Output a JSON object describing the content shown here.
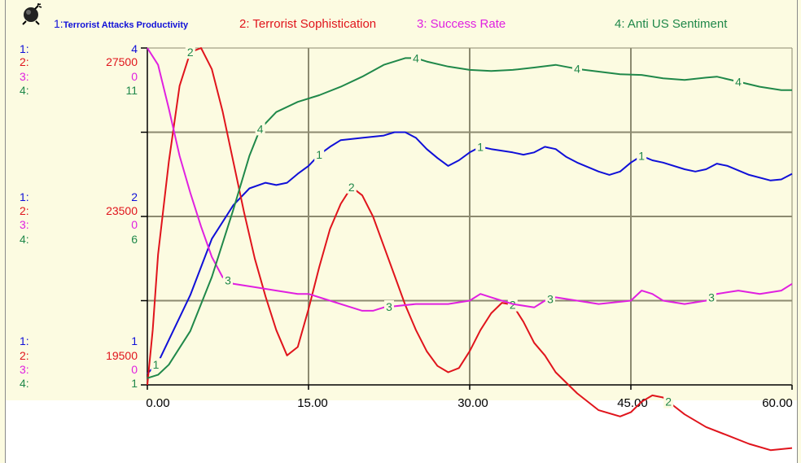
{
  "legend": {
    "s1_num": "1:",
    "s1_name": "Terrorist Attacks Productivity",
    "s2": "2: Terrorist Sophistication",
    "s3": "3: Success Rate",
    "s4": "4: Anti US Sentiment"
  },
  "axis_labels": {
    "top": {
      "n1": "1:",
      "n2": "2:",
      "n3": "3:",
      "n4": "4:",
      "v1": "4",
      "v2": "27500",
      "v3": "0",
      "v4": "11"
    },
    "mid": {
      "n1": "1:",
      "n2": "2:",
      "n3": "3:",
      "n4": "4:",
      "v1": "2",
      "v2": "23500",
      "v3": "0",
      "v4": "6"
    },
    "bot": {
      "n1": "1:",
      "n2": "2:",
      "n3": "3:",
      "n4": "4:",
      "v1": "1",
      "v2": "19500",
      "v3": "0",
      "v4": "1"
    }
  },
  "icons": {
    "bomb": "bomb-icon"
  },
  "colors": {
    "series1": "#1010d8",
    "series2": "#e0141c",
    "series3": "#e020e0",
    "series4": "#20884a",
    "background": "#fcfbe1",
    "grid": "#8c8a70"
  },
  "chart_data": {
    "type": "line",
    "xlim": [
      0,
      60
    ],
    "x_ticks": [
      "0.00",
      "15.00",
      "30.00",
      "45.00",
      "60.00"
    ],
    "grid": true,
    "legend_placement": "top",
    "series": [
      {
        "name": "Terrorist Attacks Productivity",
        "marker": "1",
        "y_axis": [
          1,
          4
        ],
        "points": [
          [
            0,
            1.1
          ],
          [
            1,
            1.2
          ],
          [
            2,
            1.4
          ],
          [
            4,
            1.8
          ],
          [
            6,
            2.3
          ],
          [
            8,
            2.6
          ],
          [
            9.5,
            2.75
          ],
          [
            11,
            2.8
          ],
          [
            12,
            2.78
          ],
          [
            13,
            2.8
          ],
          [
            14,
            2.88
          ],
          [
            15,
            2.95
          ],
          [
            16,
            3.05
          ],
          [
            17,
            3.12
          ],
          [
            18,
            3.18
          ],
          [
            20,
            3.2
          ],
          [
            22,
            3.22
          ],
          [
            23,
            3.25
          ],
          [
            24,
            3.25
          ],
          [
            25,
            3.2
          ],
          [
            26,
            3.1
          ],
          [
            27,
            3.02
          ],
          [
            28,
            2.95
          ],
          [
            29,
            3.0
          ],
          [
            30,
            3.07
          ],
          [
            31,
            3.12
          ],
          [
            32,
            3.1
          ],
          [
            34,
            3.07
          ],
          [
            35,
            3.05
          ],
          [
            36,
            3.07
          ],
          [
            37,
            3.12
          ],
          [
            38,
            3.1
          ],
          [
            39,
            3.03
          ],
          [
            40,
            2.98
          ],
          [
            42,
            2.9
          ],
          [
            43,
            2.87
          ],
          [
            44,
            2.9
          ],
          [
            45,
            2.98
          ],
          [
            46,
            3.04
          ],
          [
            47,
            3.0
          ],
          [
            48,
            2.98
          ],
          [
            50,
            2.92
          ],
          [
            51,
            2.9
          ],
          [
            52,
            2.92
          ],
          [
            53,
            2.97
          ],
          [
            54,
            2.95
          ],
          [
            56,
            2.87
          ],
          [
            58,
            2.82
          ],
          [
            59,
            2.83
          ],
          [
            60,
            2.88
          ]
        ]
      },
      {
        "name": "Terrorist Sophistication",
        "marker": "2",
        "y_axis": [
          19500,
          27500
        ],
        "points": [
          [
            0,
            19500
          ],
          [
            0.5,
            20800
          ],
          [
            1,
            22600
          ],
          [
            2,
            24800
          ],
          [
            3,
            26600
          ],
          [
            4,
            27400
          ],
          [
            5,
            27500
          ],
          [
            6,
            27000
          ],
          [
            7,
            26000
          ],
          [
            8,
            24800
          ],
          [
            9,
            23600
          ],
          [
            10,
            22500
          ],
          [
            11,
            21600
          ],
          [
            12,
            20800
          ],
          [
            13,
            20200
          ],
          [
            14,
            20400
          ],
          [
            15,
            21300
          ],
          [
            16,
            22300
          ],
          [
            17,
            23200
          ],
          [
            18,
            23800
          ],
          [
            19,
            24200
          ],
          [
            20,
            24000
          ],
          [
            21,
            23500
          ],
          [
            22,
            22800
          ],
          [
            23,
            22100
          ],
          [
            24,
            21400
          ],
          [
            25,
            20800
          ],
          [
            26,
            20300
          ],
          [
            27,
            19950
          ],
          [
            28,
            19800
          ],
          [
            29,
            19900
          ],
          [
            30,
            20300
          ],
          [
            31,
            20800
          ],
          [
            32,
            21200
          ],
          [
            33,
            21450
          ],
          [
            34,
            21400
          ],
          [
            35,
            21000
          ],
          [
            36,
            20500
          ],
          [
            37,
            20200
          ],
          [
            38,
            19800
          ],
          [
            40,
            19300
          ],
          [
            42,
            18900
          ],
          [
            44,
            18750
          ],
          [
            45,
            18850
          ],
          [
            46,
            19100
          ],
          [
            47,
            19250
          ],
          [
            48,
            19200
          ],
          [
            49,
            19000
          ],
          [
            50,
            18800
          ],
          [
            52,
            18500
          ],
          [
            54,
            18300
          ],
          [
            56,
            18100
          ],
          [
            58,
            17950
          ],
          [
            60,
            18000
          ]
        ]
      },
      {
        "name": "Success Rate",
        "marker": "3",
        "y_axis": [
          0,
          0
        ],
        "y_values_note": "0 to 0",
        "points": [
          [
            0,
            1.0
          ],
          [
            1,
            0.95
          ],
          [
            2,
            0.82
          ],
          [
            3,
            0.68
          ],
          [
            4,
            0.57
          ],
          [
            5,
            0.47
          ],
          [
            6,
            0.38
          ],
          [
            7,
            0.32
          ],
          [
            8,
            0.3
          ],
          [
            10,
            0.29
          ],
          [
            12,
            0.28
          ],
          [
            14,
            0.27
          ],
          [
            15,
            0.27
          ],
          [
            17,
            0.25
          ],
          [
            19,
            0.23
          ],
          [
            20,
            0.22
          ],
          [
            21,
            0.22
          ],
          [
            22,
            0.23
          ],
          [
            25,
            0.24
          ],
          [
            28,
            0.24
          ],
          [
            30,
            0.25
          ],
          [
            31,
            0.27
          ],
          [
            32,
            0.26
          ],
          [
            34,
            0.24
          ],
          [
            36,
            0.23
          ],
          [
            37,
            0.25
          ],
          [
            38,
            0.26
          ],
          [
            40,
            0.25
          ],
          [
            42,
            0.24
          ],
          [
            45,
            0.25
          ],
          [
            46,
            0.28
          ],
          [
            47,
            0.27
          ],
          [
            48,
            0.25
          ],
          [
            50,
            0.24
          ],
          [
            52,
            0.25
          ],
          [
            53,
            0.27
          ],
          [
            55,
            0.28
          ],
          [
            57,
            0.27
          ],
          [
            59,
            0.28
          ],
          [
            60,
            0.3
          ]
        ]
      },
      {
        "name": "Anti US Sentiment",
        "marker": "4",
        "y_axis": [
          1,
          11
        ],
        "points": [
          [
            0,
            1.2
          ],
          [
            1,
            1.3
          ],
          [
            2,
            1.6
          ],
          [
            4,
            2.6
          ],
          [
            6,
            4.2
          ],
          [
            8,
            6.2
          ],
          [
            9.5,
            7.8
          ],
          [
            10.5,
            8.6
          ],
          [
            12,
            9.1
          ],
          [
            14,
            9.4
          ],
          [
            16,
            9.6
          ],
          [
            18,
            9.85
          ],
          [
            20,
            10.15
          ],
          [
            22,
            10.5
          ],
          [
            24,
            10.7
          ],
          [
            25,
            10.7
          ],
          [
            26,
            10.6
          ],
          [
            28,
            10.45
          ],
          [
            30,
            10.35
          ],
          [
            32,
            10.32
          ],
          [
            34,
            10.35
          ],
          [
            36,
            10.42
          ],
          [
            38,
            10.5
          ],
          [
            40,
            10.38
          ],
          [
            42,
            10.3
          ],
          [
            44,
            10.22
          ],
          [
            46,
            10.2
          ],
          [
            48,
            10.1
          ],
          [
            50,
            10.05
          ],
          [
            52,
            10.12
          ],
          [
            53,
            10.15
          ],
          [
            55,
            10.0
          ],
          [
            57,
            9.85
          ],
          [
            59,
            9.75
          ],
          [
            60,
            9.75
          ]
        ]
      }
    ],
    "marker_positions": {
      "1": [
        0.8,
        16,
        31,
        46
      ],
      "2": [
        4,
        19,
        34,
        48.5
      ],
      "3": [
        7.5,
        22.5,
        37.5,
        52.5
      ],
      "4": [
        10.5,
        25,
        40,
        55
      ]
    }
  }
}
